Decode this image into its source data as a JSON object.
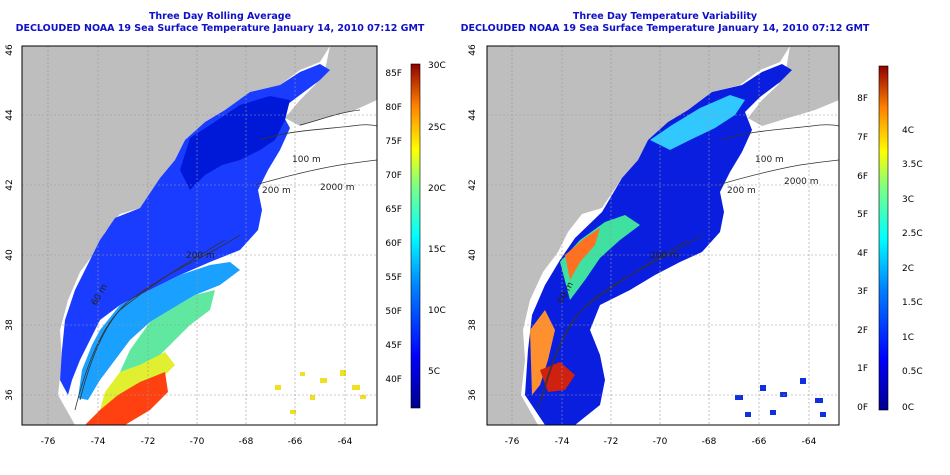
{
  "panels": [
    {
      "title": "Three Day Rolling Average",
      "subtitle": "DECLOUDED NOAA 19 Sea Surface Temperature January 14, 2010 07:12 GMT",
      "lon_ticks": [
        "-76",
        "-74",
        "-72",
        "-70",
        "-68",
        "-66",
        "-64"
      ],
      "lat_ticks": [
        "46",
        "44",
        "42",
        "40",
        "38",
        "36"
      ],
      "contours": [
        "100 m",
        "200 m",
        "2000 m",
        "100 m",
        "60 m",
        "200 m"
      ],
      "colorbar": {
        "left_ticks": [
          "85F",
          "80F",
          "75F",
          "70F",
          "65F",
          "60F",
          "55F",
          "50F",
          "45F",
          "40F"
        ],
        "right_ticks": [
          "30C",
          "25C",
          "20C",
          "15C",
          "10C",
          "5C"
        ]
      }
    },
    {
      "title": "Three Day Temperature Variability",
      "subtitle": "DECLOUDED NOAA 19 Sea Surface Temperature January 14, 2010 07:12 GMT",
      "lon_ticks": [
        "-76",
        "-74",
        "-72",
        "-70",
        "-68",
        "-66",
        "-64"
      ],
      "lat_ticks": [
        "46",
        "44",
        "42",
        "40",
        "38",
        "36"
      ],
      "contours": [
        "100 m",
        "200 m",
        "2000 m",
        "100 m",
        "60 m",
        "200 m"
      ],
      "colorbar": {
        "left_ticks": [
          "8F",
          "7F",
          "6F",
          "5F",
          "4F",
          "3F",
          "2F",
          "1F",
          "0F"
        ],
        "right_ticks": [
          "4C",
          "3.5C",
          "3C",
          "2.5C",
          "2C",
          "1.5C",
          "1C",
          "0.5C",
          "0C"
        ]
      }
    }
  ],
  "colors": {
    "title": "#1010c8",
    "land": "#bebebe",
    "ocean_nodata": "#ffffff",
    "contour": "#333333"
  }
}
